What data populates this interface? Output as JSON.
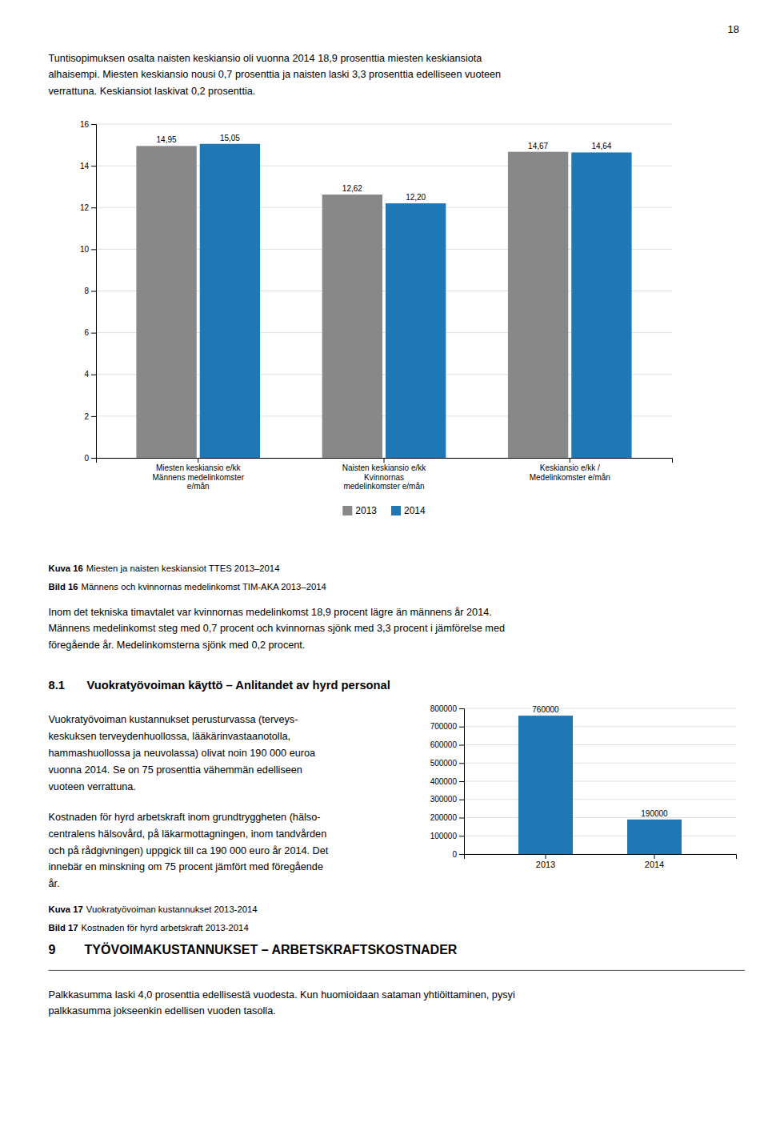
{
  "page": {
    "number": "18",
    "paragraphs": [
      [
        "Tuntisopimuksen osalta naisten keskiansio oli vuonna 2014 18,9 prosenttia miesten keskiansiota",
        "alhaisempi. Miesten keskiansio nousi 0,7 prosenttia ja naisten laski 3,3 prosenttia edelliseen vuoteen",
        "verrattuna. Keskiansiot laskivat 0,2 prosenttia."
      ],
      [
        "Inom det tekniska timavtalet var kvinnornas medelinkomst 18,9 procent lägre än männens år 2014.",
        "Männens medelinkomst steg med 0,7 procent och kvinnornas sjönk med 3,3 procent i jämförelse med",
        "föregående år. Medelinkomsterna sjönk med 0,2 procent."
      ],
      [
        "Vuokratyövoiman kustannukset perusturvassa (terveys-",
        "keskuksen terveydenhuollossa, lääkärinvastaanotolla,",
        "hammashuollossa ja neuvolassa) olivat noin 190 000 euroa",
        "vuonna 2014. Se on 75 prosenttia vähemmän edelliseen",
        "vuoteen verrattuna."
      ],
      [
        "Kostnaden för hyrd arbetskraft inom grundtryggheten (hälso-",
        "centralens hälsovård, på läkarmottagningen, inom tandvården",
        "och på rådgivningen) uppgick till ca 190 000 euro år 2014. Det",
        "innebär en minskning om 75 procent jämfört med föregående",
        "år."
      ],
      [
        "Palkkasumma laski 4,0 prosenttia edellisestä vuodesta. Kun huomioidaan sataman yhtiöittaminen, pysyi",
        "palkkasumma jokseenkin edellisen vuoden tasolla."
      ]
    ],
    "headings": [
      {
        "number": "8.1",
        "title": "Vuokratyövoiman käyttö – Anlitandet av hyrd personal"
      },
      {
        "number": "9",
        "title": "TYÖVOIMAKUSTANNUKSET – ARBETSKRAFTSKOSTNADER"
      }
    ]
  },
  "chart_data": [
    {
      "type": "bar",
      "title_label": "Kuva 16",
      "title": "Miesten ja naisten keskiansiot TTES 2013–2014",
      "subtitle_label": "Bild 16",
      "subtitle": "Männens och kvinnornas medelinkomst TIM-AKA 2013–2014",
      "categories": [
        "Miesten keskiansio e/kk\nMännens medelinkomster\ne/mån",
        "Naisten keskiansio e/kk\nKvinnornas\nmedelinkomster e/mån",
        "Keskiansio e/kk /\nMedelinkomster e/mån"
      ],
      "series": [
        {
          "name": "2013",
          "color": "#888888",
          "values": [
            14.95,
            12.62,
            14.67
          ],
          "value_labels": [
            "14,95",
            "12,62",
            "14,67"
          ]
        },
        {
          "name": "2014",
          "color": "#1f78b4",
          "values": [
            15.05,
            12.2,
            14.64
          ],
          "value_labels": [
            "15,05",
            "12,20",
            "14,64"
          ]
        }
      ],
      "ylim": [
        0,
        16
      ],
      "yticks": [
        0,
        2,
        4,
        6,
        8,
        10,
        12,
        14,
        16
      ],
      "grid": true,
      "legend": "bottom",
      "data_labels": true
    },
    {
      "type": "bar",
      "title_label": "Kuva 17",
      "title": "Vuokratyövoiman kustannukset 2013-2014",
      "subtitle_label": "Bild 17",
      "subtitle": "Kostnaden för hyrd arbetskraft 2013-2014",
      "categories": [
        "2013",
        "2014"
      ],
      "values": [
        760000,
        190000
      ],
      "color": "#1f78b4",
      "ylim": [
        0,
        800000
      ],
      "yticks": [
        0,
        100000,
        200000,
        300000,
        400000,
        500000,
        600000,
        700000,
        800000
      ],
      "grid": true,
      "data_labels": true
    }
  ]
}
